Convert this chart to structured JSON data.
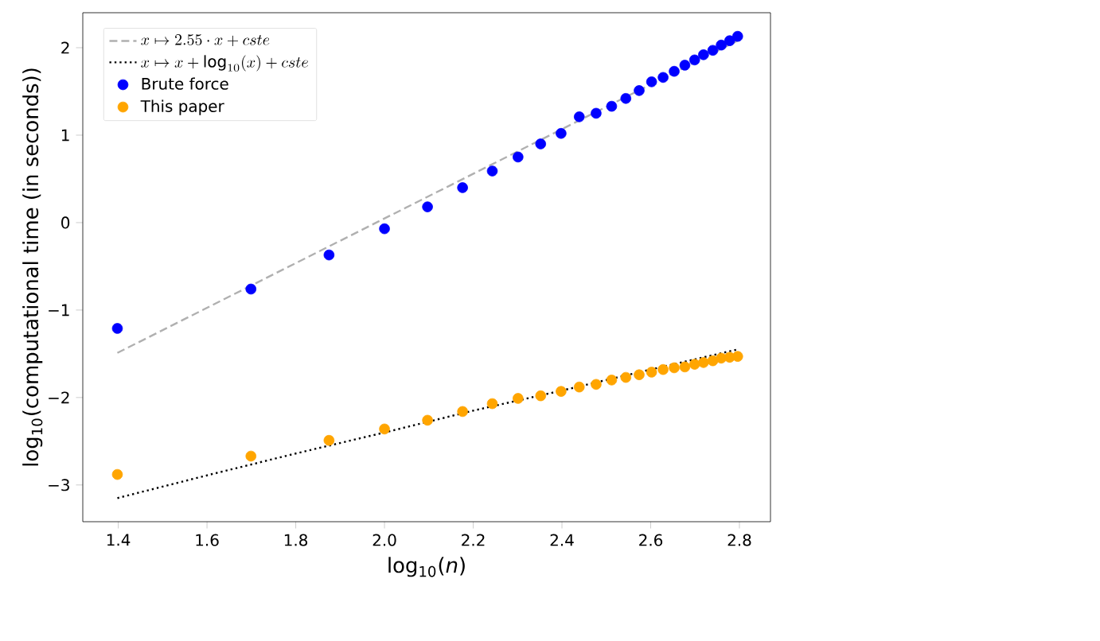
{
  "chart_data": {
    "type": "scatter",
    "xlabel": "log$_{10}$(*n*)",
    "ylabel": "log$_{10}$(computational time (in seconds))",
    "xlim": [
      1.32,
      2.87
    ],
    "ylim": [
      -3.42,
      2.4
    ],
    "xticks": [
      1.4,
      1.6,
      1.8,
      {
        "value": 2,
        "label": "2.0"
      },
      2.2,
      2.4,
      2.6,
      2.8
    ],
    "yticks": [
      {
        "value": -3,
        "label": "−3"
      },
      {
        "value": -2,
        "label": "−2"
      },
      {
        "value": -1,
        "label": "−1"
      },
      0,
      1,
      2
    ],
    "legend": "top left",
    "series": [
      {
        "name": "x \\mapsto 2.55 \\cdot x + cste",
        "type": "line",
        "line_style": "dashed",
        "marker": "none",
        "color": "#b0b0b0",
        "x": [
          1.398,
          2.796
        ],
        "values": [
          -1.49,
          2.08
        ]
      },
      {
        "name": "x \\mapsto x + \\log_{10}(x) + cste",
        "type": "line",
        "line_style": "dotted",
        "marker": "none",
        "color": "#000000",
        "x": [
          1.398,
          1.6,
          1.8,
          2.0,
          2.2,
          2.4,
          2.6,
          2.796
        ],
        "values": [
          -3.15,
          -2.89,
          -2.64,
          -2.4,
          -2.15,
          -1.92,
          -1.68,
          -1.45
        ]
      },
      {
        "name": "Brute force",
        "marker": "circle",
        "color": "#0000ff",
        "x": [
          1.398,
          1.699,
          1.875,
          2.0,
          2.097,
          2.176,
          2.243,
          2.301,
          2.352,
          2.398,
          2.439,
          2.477,
          2.512,
          2.544,
          2.574,
          2.602,
          2.628,
          2.653,
          2.677,
          2.699,
          2.719,
          2.74,
          2.759,
          2.778,
          2.796
        ],
        "values": [
          -1.21,
          -0.76,
          -0.37,
          -0.07,
          0.18,
          0.4,
          0.59,
          0.75,
          0.9,
          1.02,
          1.21,
          1.25,
          1.33,
          1.42,
          1.51,
          1.61,
          1.66,
          1.73,
          1.8,
          1.86,
          1.92,
          1.97,
          2.03,
          2.08,
          2.13
        ]
      },
      {
        "name": "This paper",
        "marker": "circle",
        "color": "#ffa500",
        "x": [
          1.398,
          1.699,
          1.875,
          2.0,
          2.097,
          2.176,
          2.243,
          2.301,
          2.352,
          2.398,
          2.439,
          2.477,
          2.512,
          2.544,
          2.574,
          2.602,
          2.628,
          2.653,
          2.677,
          2.699,
          2.719,
          2.74,
          2.759,
          2.778,
          2.796
        ],
        "values": [
          -2.88,
          -2.67,
          -2.49,
          -2.36,
          -2.26,
          -2.16,
          -2.07,
          -2.01,
          -1.98,
          -1.93,
          -1.88,
          -1.85,
          -1.8,
          -1.77,
          -1.74,
          -1.71,
          -1.68,
          -1.66,
          -1.65,
          -1.62,
          -1.6,
          -1.58,
          -1.55,
          -1.54,
          -1.53
        ]
      }
    ]
  }
}
